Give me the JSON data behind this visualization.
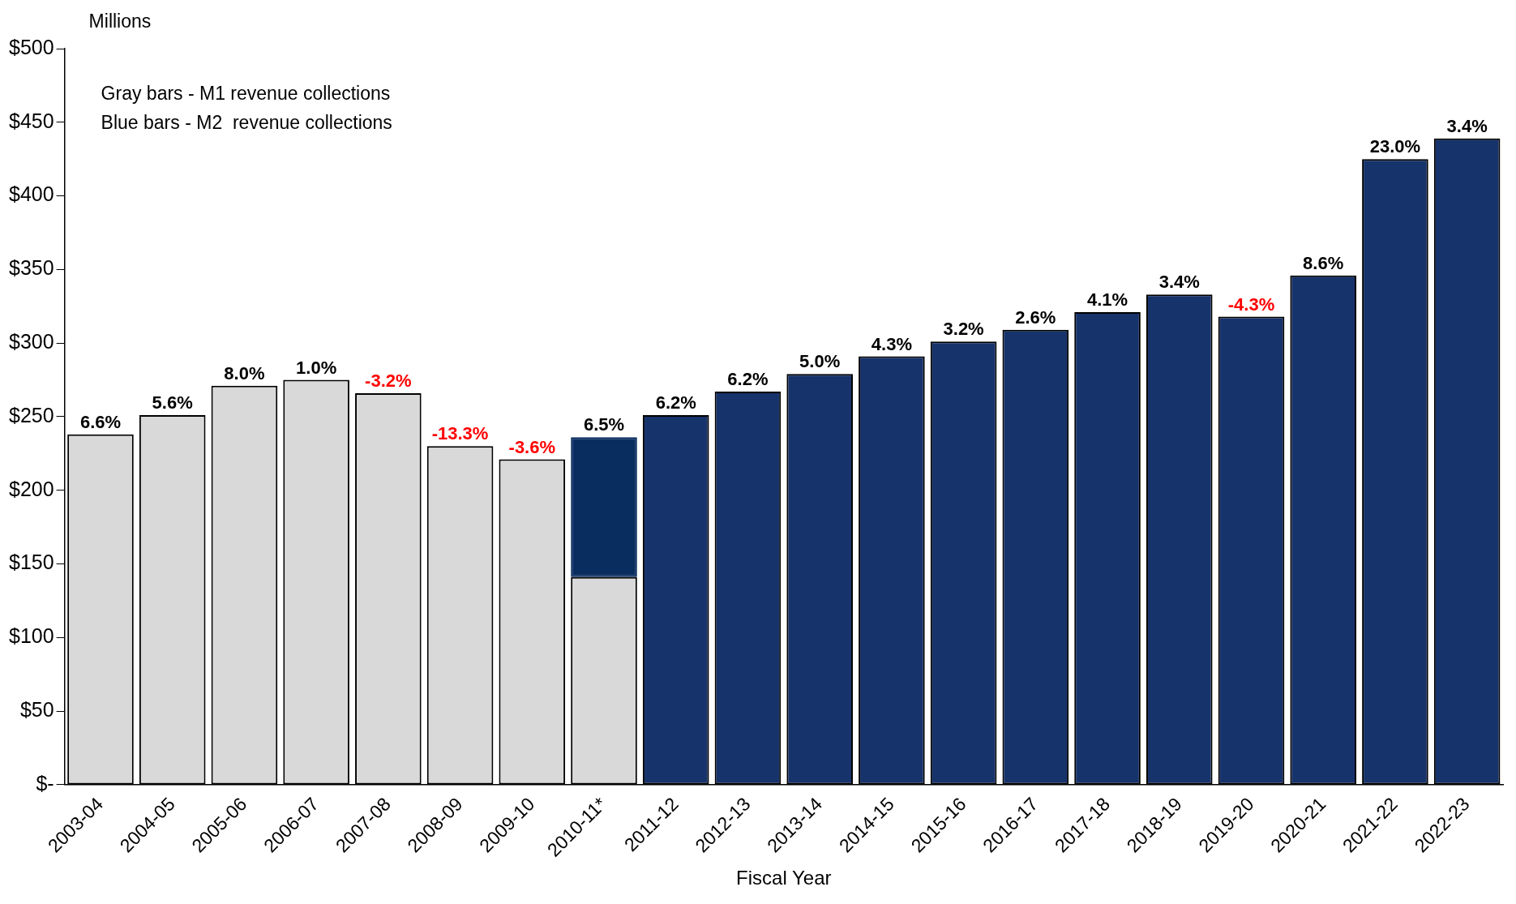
{
  "chart_data": {
    "type": "bar",
    "stacked": true,
    "xlabel": "Fiscal Year",
    "ylabel": "Millions",
    "categories": [
      "2003-04",
      "2004-05",
      "2005-06",
      "2006-07",
      "2007-08",
      "2008-09",
      "2009-10",
      "2010-11*",
      "2011-12",
      "2012-13",
      "2013-14",
      "2014-15",
      "2015-16",
      "2016-17",
      "2017-18",
      "2018-19",
      "2019-20",
      "2020-21",
      "2021-22",
      "2022-23"
    ],
    "series": [
      {
        "color": "#d9d9d9",
        "values": [
          238,
          251,
          271,
          275,
          266,
          230,
          221,
          141,
          null,
          null,
          null,
          null,
          null,
          null,
          null,
          null,
          null,
          null,
          null,
          null
        ]
      },
      {
        "color": "#17336b",
        "colors": [
          null,
          null,
          null,
          null,
          null,
          null,
          null,
          "#0a2d60",
          "#17336b",
          "#17336b",
          "#17336b",
          "#17336b",
          "#17336b",
          "#17336b",
          "#17336b",
          "#17336b",
          "#17336b",
          "#17336b",
          "#17336b",
          "#17336b"
        ],
        "values": [
          null,
          null,
          null,
          null,
          null,
          null,
          null,
          95,
          251,
          267,
          279,
          291,
          301,
          309,
          321,
          333,
          318,
          346,
          425,
          439
        ]
      }
    ],
    "ylim": [
      0,
      500
    ],
    "yticks": [
      {
        "value": 0,
        "label": "$-"
      },
      {
        "value": 50,
        "label": "$50"
      },
      {
        "value": 100,
        "label": "$100"
      },
      {
        "value": 150,
        "label": "$150"
      },
      {
        "value": 200,
        "label": "$200"
      },
      {
        "value": 250,
        "label": "$250"
      },
      {
        "value": 300,
        "label": "$300"
      },
      {
        "value": 350,
        "label": "$350"
      },
      {
        "value": 400,
        "label": "$400"
      },
      {
        "value": 450,
        "label": "$450"
      },
      {
        "value": 500,
        "label": "$500"
      }
    ],
    "annotations": [
      "Gray bars - M1 revenue collections",
      "Blue bars - M2  revenue collections",
      {
        "text": "6.6%",
        "x": "2003-04",
        "y": 238
      },
      {
        "text": "5.6%",
        "x": "2004-05",
        "y": 251
      },
      {
        "text": "8.0%",
        "x": "2005-06",
        "y": 271
      },
      {
        "text": "1.0%",
        "x": "2006-07",
        "y": 275
      },
      {
        "text": "-3.2%",
        "x": "2007-08",
        "y": 266
      },
      {
        "text": "-13.3%",
        "x": "2008-09",
        "y": 230
      },
      {
        "text": "-3.6%",
        "x": "2009-10",
        "y": 221
      },
      {
        "text": "6.5%",
        "x": "2010-11*",
        "y": 236
      },
      {
        "text": "6.2%",
        "x": "2011-12",
        "y": 251
      },
      {
        "text": "6.2%",
        "x": "2012-13",
        "y": 267
      },
      {
        "text": "5.0%",
        "x": "2013-14",
        "y": 279
      },
      {
        "text": "4.3%",
        "x": "2014-15",
        "y": 291
      },
      {
        "text": "3.2%",
        "x": "2015-16",
        "y": 301
      },
      {
        "text": "2.6%",
        "x": "2016-17",
        "y": 309
      },
      {
        "text": "4.1%",
        "x": "2017-18",
        "y": 321
      },
      {
        "text": "3.4%",
        "x": "2018-19",
        "y": 333
      },
      {
        "text": "-4.3%",
        "x": "2019-20",
        "y": 318
      },
      {
        "text": "8.6%",
        "x": "2020-21",
        "y": 346
      },
      {
        "text": "23.0%",
        "x": "2021-22",
        "y": 425
      },
      {
        "text": "3.4%",
        "x": "2022-23",
        "y": 439
      }
    ],
    "grid": false,
    "legend": false
  }
}
